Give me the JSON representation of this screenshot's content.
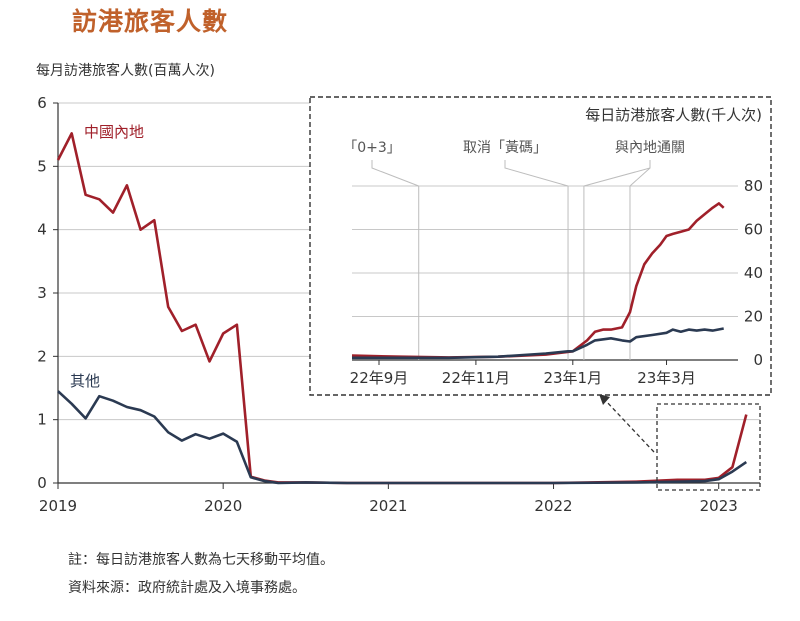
{
  "title": "訪港旅客人數",
  "colors": {
    "mainland": "#a0202a",
    "others": "#2b3a52",
    "title": "#c0612b",
    "grid": "#c8c8c8"
  },
  "notes": [
    "註：每日訪港旅客人數為七天移動平均值。",
    "資料來源：政府統計處及入境事務處。"
  ],
  "chart_data": [
    {
      "type": "line",
      "ylabel": "每月訪港旅客人數(百萬人次)",
      "ylim": [
        0,
        6
      ],
      "yticks": [
        0,
        1,
        2,
        3,
        4,
        5,
        6
      ],
      "xlim": [
        2019.0,
        2023.25
      ],
      "xticks": [
        2019,
        2020,
        2021,
        2022,
        2023
      ],
      "grid": true,
      "series": [
        {
          "name": "中國內地",
          "color": "#a0202a",
          "x": [
            2019.0,
            2019.083,
            2019.167,
            2019.25,
            2019.333,
            2019.417,
            2019.5,
            2019.583,
            2019.667,
            2019.75,
            2019.833,
            2019.917,
            2020.0,
            2020.083,
            2020.167,
            2020.25,
            2020.333,
            2020.5,
            2020.75,
            2021.0,
            2021.5,
            2022.0,
            2022.5,
            2022.75,
            2022.833,
            2022.917,
            2023.0,
            2023.083,
            2023.167
          ],
          "y": [
            5.1,
            5.52,
            4.55,
            4.48,
            4.27,
            4.7,
            4.0,
            4.15,
            2.78,
            2.4,
            2.5,
            1.92,
            2.36,
            2.5,
            0.1,
            0.04,
            0.01,
            0.01,
            0.0,
            0.0,
            0.0,
            0.0,
            0.02,
            0.05,
            0.05,
            0.05,
            0.08,
            0.25,
            1.08
          ]
        },
        {
          "name": "其他",
          "color": "#2b3a52",
          "x": [
            2019.0,
            2019.083,
            2019.167,
            2019.25,
            2019.333,
            2019.417,
            2019.5,
            2019.583,
            2019.667,
            2019.75,
            2019.833,
            2019.917,
            2020.0,
            2020.083,
            2020.167,
            2020.25,
            2020.333,
            2020.5,
            2020.75,
            2021.0,
            2021.5,
            2022.0,
            2022.5,
            2022.75,
            2022.917,
            2023.0,
            2023.083,
            2023.167
          ],
          "y": [
            1.45,
            1.25,
            1.02,
            1.37,
            1.3,
            1.2,
            1.15,
            1.05,
            0.8,
            0.67,
            0.77,
            0.7,
            0.78,
            0.65,
            0.09,
            0.03,
            0.0,
            0.01,
            0.0,
            0.0,
            0.0,
            0.0,
            0.01,
            0.02,
            0.03,
            0.06,
            0.18,
            0.33
          ]
        }
      ]
    },
    {
      "type": "line",
      "ylabel": "每日訪港旅客人數(千人次)",
      "ylim": [
        0,
        80
      ],
      "yticks": [
        0,
        20,
        40,
        60,
        80
      ],
      "xlim": [
        "2022-08-15",
        "2023-04-15"
      ],
      "xticks": [
        {
          "date": "2022-09-01",
          "label": "22年9月"
        },
        {
          "date": "2022-11-01",
          "label": "22年11月"
        },
        {
          "date": "2023-01-01",
          "label": "23年1月"
        },
        {
          "date": "2023-03-01",
          "label": "23年3月"
        }
      ],
      "grid": true,
      "annotations": [
        {
          "label": "「0+3」",
          "date": "2022-09-26"
        },
        {
          "label": "取消「黃碼」",
          "date": "2022-12-29"
        },
        {
          "label": "與內地通關",
          "date": "2023-01-08"
        },
        {
          "label": "與內地通關",
          "date": "2023-02-06"
        }
      ],
      "series": [
        {
          "name": "中國內地",
          "color": "#a0202a",
          "x": [
            "2022-08-15",
            "2022-09-15",
            "2022-10-15",
            "2022-11-15",
            "2022-12-15",
            "2023-01-01",
            "2023-01-10",
            "2023-01-15",
            "2023-01-20",
            "2023-01-25",
            "2023-02-01",
            "2023-02-06",
            "2023-02-10",
            "2023-02-15",
            "2023-02-20",
            "2023-02-25",
            "2023-03-01",
            "2023-03-05",
            "2023-03-10",
            "2023-03-15",
            "2023-03-20",
            "2023-03-25",
            "2023-03-30",
            "2023-04-03",
            "2023-04-06"
          ],
          "y": [
            2,
            1.5,
            1.2,
            1.5,
            2.5,
            4,
            9,
            13,
            14,
            14,
            15,
            22,
            34,
            44,
            49,
            53,
            57,
            58,
            59,
            60,
            64,
            67,
            70,
            72,
            70
          ]
        },
        {
          "name": "其他",
          "color": "#2b3a52",
          "x": [
            "2022-08-15",
            "2022-09-15",
            "2022-10-15",
            "2022-11-15",
            "2022-12-15",
            "2022-12-29",
            "2023-01-01",
            "2023-01-10",
            "2023-01-15",
            "2023-01-25",
            "2023-02-01",
            "2023-02-06",
            "2023-02-10",
            "2023-02-20",
            "2023-03-01",
            "2023-03-05",
            "2023-03-10",
            "2023-03-15",
            "2023-03-20",
            "2023-03-25",
            "2023-03-30",
            "2023-04-06"
          ],
          "y": [
            1,
            1,
            1,
            1.5,
            3,
            4,
            4,
            7,
            9,
            10,
            9,
            8.5,
            10.5,
            11.5,
            12.5,
            14,
            13,
            14,
            13.5,
            14,
            13.5,
            14.5
          ]
        }
      ]
    }
  ]
}
